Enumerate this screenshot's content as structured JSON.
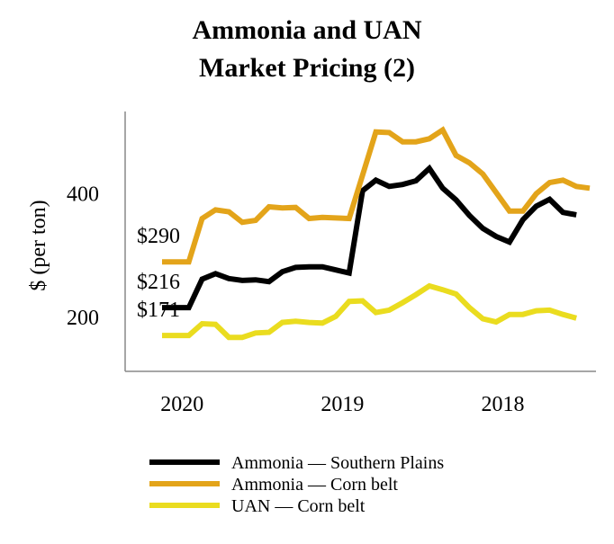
{
  "chart_data": {
    "type": "line",
    "title": [
      "Ammonia and UAN",
      "Market Pricing (2)"
    ],
    "ylabel": "$ (per ton)",
    "xlabel": "",
    "ylim": [
      113,
      533
    ],
    "yticks": [
      200,
      400
    ],
    "x_ticks": [
      {
        "label": "2020",
        "index": 1.5
      },
      {
        "label": "2019",
        "index": 13.5
      },
      {
        "label": "2018",
        "index": 25.5
      }
    ],
    "annotations": [
      {
        "text": "$290",
        "series": 1
      },
      {
        "text": "$216",
        "series": 0
      },
      {
        "text": "$171",
        "series": 2
      }
    ],
    "series": [
      {
        "name": "Ammonia — Southern Plains",
        "color": "#000000",
        "values": [
          216,
          216,
          216,
          262,
          271,
          263,
          260,
          261,
          258,
          274,
          281,
          282,
          282,
          277,
          272,
          405,
          422,
          412,
          415,
          421,
          441,
          409,
          390,
          365,
          344,
          331,
          322,
          358,
          380,
          391,
          370,
          366
        ]
      },
      {
        "name": "Ammonia — Corn belt",
        "color": "#e3a41a",
        "values": [
          290,
          290,
          290,
          360,
          374,
          371,
          354,
          357,
          379,
          377,
          378,
          360,
          362,
          361,
          360,
          430,
          500,
          499,
          484,
          484,
          489,
          503,
          462,
          450,
          432,
          402,
          372,
          372,
          400,
          418,
          422,
          412,
          409
        ]
      },
      {
        "name": "UAN — Corn belt",
        "color": "#eadc1f",
        "values": [
          171,
          171,
          171,
          190,
          189,
          168,
          168,
          175,
          176,
          192,
          194,
          192,
          191,
          202,
          226,
          227,
          208,
          212,
          224,
          237,
          251,
          245,
          238,
          216,
          198,
          193,
          205,
          205,
          211,
          212,
          205,
          199
        ]
      }
    ]
  }
}
